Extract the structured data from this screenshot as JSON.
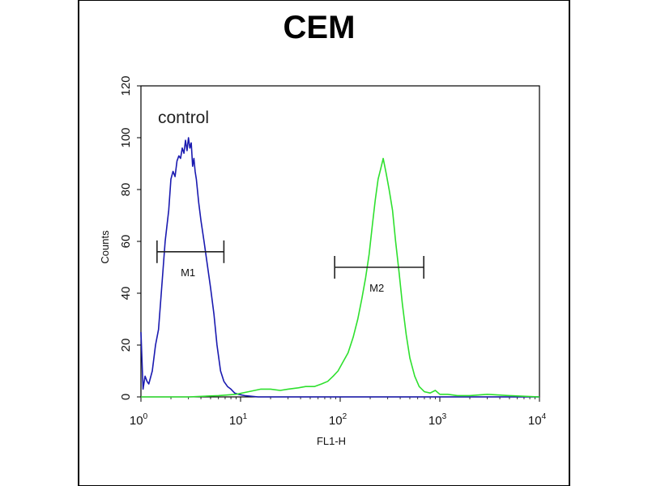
{
  "chart_data": {
    "type": "line",
    "title": "CEM",
    "xlabel": "FL1-H",
    "ylabel": "Counts",
    "x_scale": "log",
    "xlim": [
      1,
      10000
    ],
    "ylim": [
      0,
      120
    ],
    "y_ticks": [
      "0",
      "20",
      "40",
      "60",
      "80",
      "100",
      "120"
    ],
    "x_ticks": [
      {
        "base": "10",
        "exp": "0"
      },
      {
        "base": "10",
        "exp": "1"
      },
      {
        "base": "10",
        "exp": "2"
      },
      {
        "base": "10",
        "exp": "3"
      },
      {
        "base": "10",
        "exp": "4"
      }
    ],
    "annotations": [
      {
        "text": "control"
      }
    ],
    "markers": [
      {
        "label": "M1",
        "x_start": 1.45,
        "x_end": 6.8,
        "y": 56
      },
      {
        "label": "M2",
        "x_start": 88,
        "x_end": 690,
        "y": 50
      }
    ],
    "grid": false,
    "series": [
      {
        "color": "#1a1ab0",
        "x": [
          1.0,
          1.05,
          1.1,
          1.15,
          1.2,
          1.3,
          1.4,
          1.5,
          1.6,
          1.75,
          1.9,
          2.0,
          2.1,
          2.2,
          2.3,
          2.4,
          2.5,
          2.6,
          2.7,
          2.8,
          2.9,
          3.0,
          3.1,
          3.2,
          3.3,
          3.4,
          3.5,
          3.6,
          3.8,
          4.0,
          4.3,
          4.6,
          5.0,
          5.4,
          5.8,
          6.3,
          6.8,
          7.4,
          8.0,
          8.7,
          9.5,
          11,
          15,
          30,
          100,
          1000,
          10000
        ],
        "y": [
          25,
          3,
          8,
          6,
          5,
          10,
          20,
          26,
          40,
          60,
          72,
          84,
          87,
          85,
          91,
          93,
          92,
          96,
          94,
          99,
          95,
          100,
          96,
          98,
          89,
          92,
          87,
          84,
          75,
          68,
          60,
          52,
          42,
          32,
          20,
          10,
          6,
          4,
          3,
          1.5,
          1,
          0.5,
          0,
          0,
          0,
          0,
          0
        ]
      },
      {
        "color": "#2ee02e",
        "x": [
          1,
          3,
          6,
          9,
          12,
          16,
          20,
          25,
          30,
          38,
          45,
          55,
          65,
          75,
          85,
          95,
          105,
          120,
          135,
          150,
          165,
          180,
          195,
          210,
          225,
          240,
          255,
          270,
          290,
          310,
          335,
          360,
          390,
          420,
          460,
          500,
          560,
          620,
          700,
          800,
          900,
          1000,
          1200,
          1500,
          2000,
          3000,
          5000,
          10000
        ],
        "y": [
          0,
          0,
          0.5,
          1,
          2,
          3,
          3,
          2.5,
          3,
          3.5,
          4,
          4,
          5,
          6,
          8,
          10,
          13,
          17,
          23,
          30,
          38,
          46,
          55,
          66,
          76,
          84,
          88,
          92,
          86,
          80,
          72,
          60,
          48,
          36,
          24,
          15,
          8,
          4,
          2,
          1.5,
          2.5,
          1,
          1,
          0.5,
          0.5,
          1,
          0.5,
          0
        ]
      }
    ]
  }
}
